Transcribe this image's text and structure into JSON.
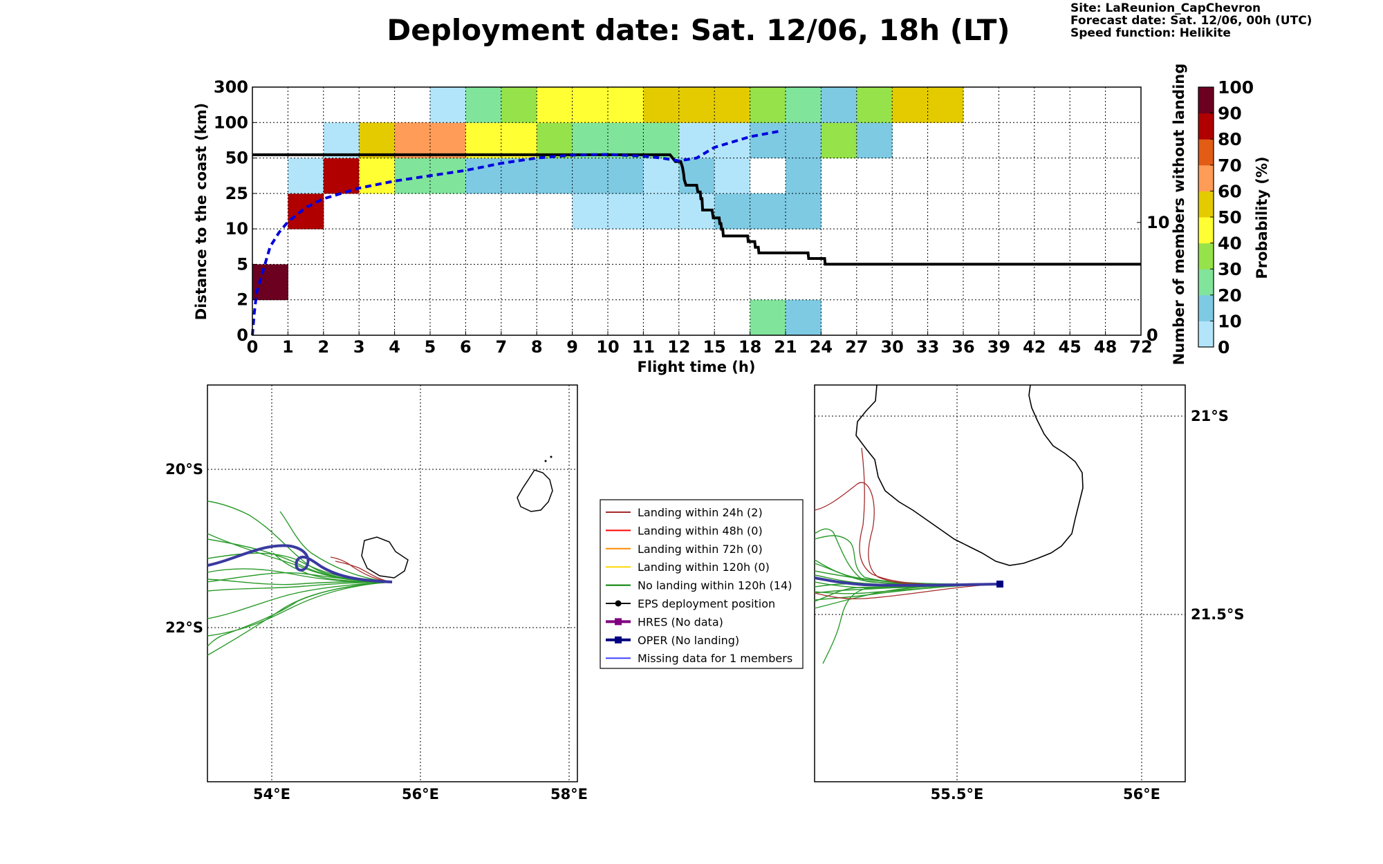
{
  "header": {
    "title": "Deployment date: Sat. 12/06, 18h (LT)",
    "site": "Site: LaReunion_CapChevron",
    "forecast": "Forecast date: Sat. 12/06, 00h (UTC)",
    "speed": "Speed function: Helikite"
  },
  "chart_data": [
    {
      "type": "heatmap",
      "xlabel": "Flight time (h)",
      "ylabel": "Distance to the coast (km)",
      "y2label": "Number of members without landing",
      "colorbar_label": "Probability (%)",
      "x_ticks": [
        "0",
        "1",
        "2",
        "3",
        "4",
        "5",
        "6",
        "7",
        "8",
        "9",
        "10",
        "11",
        "12",
        "15",
        "18",
        "21",
        "24",
        "27",
        "30",
        "33",
        "36",
        "39",
        "42",
        "45",
        "48",
        "72"
      ],
      "y_ticks": [
        "0",
        "2",
        "5",
        "10",
        "25",
        "50",
        "100",
        "300"
      ],
      "y2_ticks": [
        {
          "value": 0,
          "label": "0"
        },
        {
          "value": 10,
          "label": "10"
        }
      ],
      "colorbar_ticks": [
        "0",
        "10",
        "20",
        "30",
        "40",
        "50",
        "60",
        "70",
        "80",
        "90",
        "100"
      ],
      "colorbar_colors": [
        "#b3e5fa",
        "#7ecae3",
        "#80e59b",
        "#96e24a",
        "#ffff33",
        "#e3cb00",
        "#ff9c57",
        "#e25c15",
        "#b00000",
        "#6b0020"
      ],
      "cells": [
        {
          "x": 0,
          "y": 1,
          "p": 95
        },
        {
          "x": 1,
          "y": 3,
          "p": 85
        },
        {
          "x": 1,
          "y": 4,
          "p": 5
        },
        {
          "x": 2,
          "y": 4,
          "p": 85
        },
        {
          "x": 2,
          "y": 5,
          "p": 5
        },
        {
          "x": 3,
          "y": 4,
          "p": 45
        },
        {
          "x": 3,
          "y": 5,
          "p": 55
        },
        {
          "x": 4,
          "y": 4,
          "p": 25
        },
        {
          "x": 4,
          "y": 5,
          "p": 65
        },
        {
          "x": 5,
          "y": 4,
          "p": 25
        },
        {
          "x": 5,
          "y": 5,
          "p": 65
        },
        {
          "x": 5,
          "y": 6,
          "p": 5
        },
        {
          "x": 6,
          "y": 4,
          "p": 15
        },
        {
          "x": 6,
          "y": 5,
          "p": 45
        },
        {
          "x": 6,
          "y": 6,
          "p": 25
        },
        {
          "x": 7,
          "y": 4,
          "p": 15
        },
        {
          "x": 7,
          "y": 5,
          "p": 45
        },
        {
          "x": 7,
          "y": 6,
          "p": 35
        },
        {
          "x": 8,
          "y": 4,
          "p": 15
        },
        {
          "x": 8,
          "y": 5,
          "p": 35
        },
        {
          "x": 8,
          "y": 6,
          "p": 45
        },
        {
          "x": 9,
          "y": 3,
          "p": 5
        },
        {
          "x": 9,
          "y": 4,
          "p": 15
        },
        {
          "x": 9,
          "y": 5,
          "p": 25
        },
        {
          "x": 9,
          "y": 6,
          "p": 45
        },
        {
          "x": 10,
          "y": 3,
          "p": 5
        },
        {
          "x": 10,
          "y": 4,
          "p": 15
        },
        {
          "x": 10,
          "y": 5,
          "p": 25
        },
        {
          "x": 10,
          "y": 6,
          "p": 45
        },
        {
          "x": 11,
          "y": 3,
          "p": 5
        },
        {
          "x": 11,
          "y": 4,
          "p": 5
        },
        {
          "x": 11,
          "y": 5,
          "p": 25
        },
        {
          "x": 11,
          "y": 6,
          "p": 55
        },
        {
          "x": 12,
          "y": 3,
          "p": 5
        },
        {
          "x": 12,
          "y": 4,
          "p": 15
        },
        {
          "x": 12,
          "y": 5,
          "p": 5
        },
        {
          "x": 12,
          "y": 6,
          "p": 55
        },
        {
          "x": 13,
          "y": 3,
          "p": 15
        },
        {
          "x": 13,
          "y": 4,
          "p": 5
        },
        {
          "x": 13,
          "y": 5,
          "p": 5
        },
        {
          "x": 13,
          "y": 6,
          "p": 55
        },
        {
          "x": 14,
          "y": 0,
          "p": 25
        },
        {
          "x": 14,
          "y": 3,
          "p": 15
        },
        {
          "x": 14,
          "y": 5,
          "p": 15
        },
        {
          "x": 14,
          "y": 6,
          "p": 35
        },
        {
          "x": 15,
          "y": 0,
          "p": 15
        },
        {
          "x": 15,
          "y": 3,
          "p": 15
        },
        {
          "x": 15,
          "y": 4,
          "p": 15
        },
        {
          "x": 15,
          "y": 5,
          "p": 15
        },
        {
          "x": 15,
          "y": 6,
          "p": 25
        },
        {
          "x": 16,
          "y": 5,
          "p": 35
        },
        {
          "x": 16,
          "y": 6,
          "p": 15
        },
        {
          "x": 17,
          "y": 5,
          "p": 15
        },
        {
          "x": 17,
          "y": 6,
          "p": 35
        },
        {
          "x": 18,
          "y": 6,
          "p": 55
        },
        {
          "x": 19,
          "y": 6,
          "p": 55
        }
      ],
      "median_distance_curve": {
        "color": "#0000dd",
        "points": [
          [
            0,
            0.0
          ],
          [
            0.05,
            0.6
          ],
          [
            0.12,
            1.2
          ],
          [
            0.25,
            1.65
          ],
          [
            0.5,
            2.5
          ],
          [
            0.75,
            2.9
          ],
          [
            1,
            3.2
          ],
          [
            1.5,
            3.6
          ],
          [
            2,
            3.85
          ],
          [
            2.5,
            4.0
          ],
          [
            3,
            4.15
          ],
          [
            4,
            4.35
          ],
          [
            5,
            4.5
          ],
          [
            6,
            4.65
          ],
          [
            7,
            4.85
          ],
          [
            8,
            5.0
          ],
          [
            9,
            5.08
          ],
          [
            10,
            5.1
          ],
          [
            11,
            5.05
          ],
          [
            11.5,
            5.0
          ],
          [
            12,
            4.92
          ],
          [
            12.5,
            5.0
          ],
          [
            13,
            5.3
          ],
          [
            14,
            5.6
          ],
          [
            14.8,
            5.75
          ]
        ]
      },
      "members_without_landing": {
        "color": "#000000",
        "steps": [
          [
            0,
            16
          ],
          [
            11.75,
            16
          ],
          [
            11.9,
            15.4
          ],
          [
            12.15,
            15.4
          ],
          [
            12.3,
            14.9
          ],
          [
            12.4,
            14.3
          ],
          [
            12.45,
            13.8
          ],
          [
            12.6,
            13.3
          ],
          [
            13,
            13.3
          ],
          [
            13.5,
            13.3
          ],
          [
            13.6,
            12.7
          ],
          [
            13.8,
            12.7
          ],
          [
            13.85,
            12.1
          ],
          [
            13.95,
            12.1
          ],
          [
            14.0,
            11.1
          ],
          [
            14.8,
            11.1
          ],
          [
            14.9,
            10.4
          ],
          [
            15.4,
            10.4
          ],
          [
            15.45,
            9.9
          ],
          [
            15.55,
            9.9
          ],
          [
            15.6,
            9.4
          ],
          [
            15.7,
            9.4
          ],
          [
            15.75,
            8.8
          ],
          [
            17.8,
            8.8
          ],
          [
            17.85,
            8.3
          ],
          [
            18.4,
            8.3
          ],
          [
            18.45,
            7.8
          ],
          [
            18.7,
            7.8
          ],
          [
            18.75,
            7.3
          ],
          [
            22.9,
            7.3
          ],
          [
            22.95,
            6.8
          ],
          [
            24.3,
            6.8
          ],
          [
            24.35,
            6.3
          ],
          [
            72,
            6.3
          ]
        ]
      }
    }
  ],
  "maps": {
    "left": {
      "lon_ticks": [
        "54°E",
        "56°E",
        "58°E"
      ],
      "lat_ticks": [
        "20°S",
        "22°S"
      ]
    },
    "right": {
      "lon_ticks": [
        "55.5°E",
        "56°E"
      ],
      "lat_ticks": [
        "21°S",
        "21.5°S"
      ]
    }
  },
  "legend": {
    "items": [
      {
        "label": "Landing within 24h (2)",
        "color": "#a52a2a",
        "marker": "none"
      },
      {
        "label": "Landing within 48h (0)",
        "color": "#ff0000",
        "marker": "none"
      },
      {
        "label": "Landing within 72h (0)",
        "color": "#ff8c00",
        "marker": "none"
      },
      {
        "label": "Landing within 120h (0)",
        "color": "#ffd700",
        "marker": "none"
      },
      {
        "label": "No landing within 120h (14)",
        "color": "#008000",
        "marker": "none"
      },
      {
        "label": "EPS deployment position",
        "color": "#000000",
        "marker": "circle"
      },
      {
        "label": "HRES (No data)",
        "color": "#800080",
        "marker": "square"
      },
      {
        "label": "OPER (No landing)",
        "color": "#000080",
        "marker": "square"
      },
      {
        "label": "Missing data for 1 members",
        "color": "#4040ff",
        "marker": "none"
      }
    ]
  }
}
